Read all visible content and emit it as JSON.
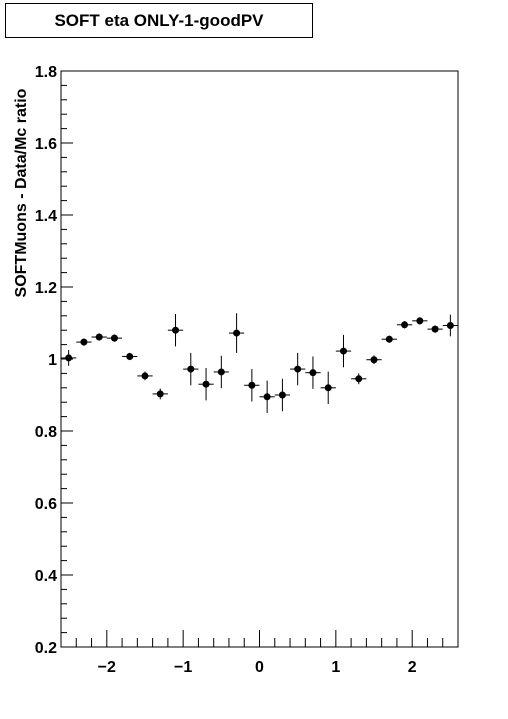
{
  "title": "SOFT eta ONLY-1-goodPV",
  "chart_data": {
    "type": "scatter",
    "title": "SOFT eta ONLY-1-goodPV",
    "xlabel": "",
    "ylabel": "SOFTMuons - Data/Mc ratio",
    "xlim": [
      -2.6,
      2.6
    ],
    "ylim": [
      0.2,
      1.8
    ],
    "x_ticks": [
      {
        "value": -2,
        "label": "−2"
      },
      {
        "value": -1,
        "label": "−1"
      },
      {
        "value": 0,
        "label": "0"
      },
      {
        "value": 1,
        "label": "1"
      },
      {
        "value": 2,
        "label": "2"
      }
    ],
    "y_ticks": [
      {
        "value": 0.2,
        "label": "0.2"
      },
      {
        "value": 0.4,
        "label": "0.4"
      },
      {
        "value": 0.6,
        "label": "0.6"
      },
      {
        "value": 0.8,
        "label": "0.8"
      },
      {
        "value": 1.0,
        "label": "1"
      },
      {
        "value": 1.2,
        "label": "1.2"
      },
      {
        "value": 1.4,
        "label": "1.4"
      },
      {
        "value": 1.6,
        "label": "1.6"
      },
      {
        "value": 1.8,
        "label": "1.8"
      }
    ],
    "x_bin_half_width": 0.1,
    "grid": false,
    "marker_color": "#000000",
    "points": [
      {
        "x": -2.5,
        "y": 1.003,
        "err": 0.022
      },
      {
        "x": -2.3,
        "y": 1.047,
        "err": 0.01
      },
      {
        "x": -2.1,
        "y": 1.061,
        "err": 0.01
      },
      {
        "x": -1.9,
        "y": 1.058,
        "err": 0.01
      },
      {
        "x": -1.7,
        "y": 1.007,
        "err": 0.01
      },
      {
        "x": -1.5,
        "y": 0.953,
        "err": 0.012
      },
      {
        "x": -1.3,
        "y": 0.903,
        "err": 0.015
      },
      {
        "x": -1.1,
        "y": 1.08,
        "err": 0.045
      },
      {
        "x": -0.9,
        "y": 0.972,
        "err": 0.045
      },
      {
        "x": -0.7,
        "y": 0.93,
        "err": 0.045
      },
      {
        "x": -0.5,
        "y": 0.964,
        "err": 0.045
      },
      {
        "x": -0.3,
        "y": 1.072,
        "err": 0.055
      },
      {
        "x": -0.1,
        "y": 0.927,
        "err": 0.045
      },
      {
        "x": 0.1,
        "y": 0.895,
        "err": 0.045
      },
      {
        "x": 0.3,
        "y": 0.9,
        "err": 0.045
      },
      {
        "x": 0.5,
        "y": 0.972,
        "err": 0.045
      },
      {
        "x": 0.7,
        "y": 0.962,
        "err": 0.045
      },
      {
        "x": 0.9,
        "y": 0.92,
        "err": 0.045
      },
      {
        "x": 1.1,
        "y": 1.022,
        "err": 0.045
      },
      {
        "x": 1.3,
        "y": 0.945,
        "err": 0.015
      },
      {
        "x": 1.5,
        "y": 0.998,
        "err": 0.012
      },
      {
        "x": 1.7,
        "y": 1.055,
        "err": 0.01
      },
      {
        "x": 1.9,
        "y": 1.095,
        "err": 0.01
      },
      {
        "x": 2.1,
        "y": 1.106,
        "err": 0.01
      },
      {
        "x": 2.3,
        "y": 1.083,
        "err": 0.01
      },
      {
        "x": 2.5,
        "y": 1.093,
        "err": 0.03
      }
    ]
  }
}
